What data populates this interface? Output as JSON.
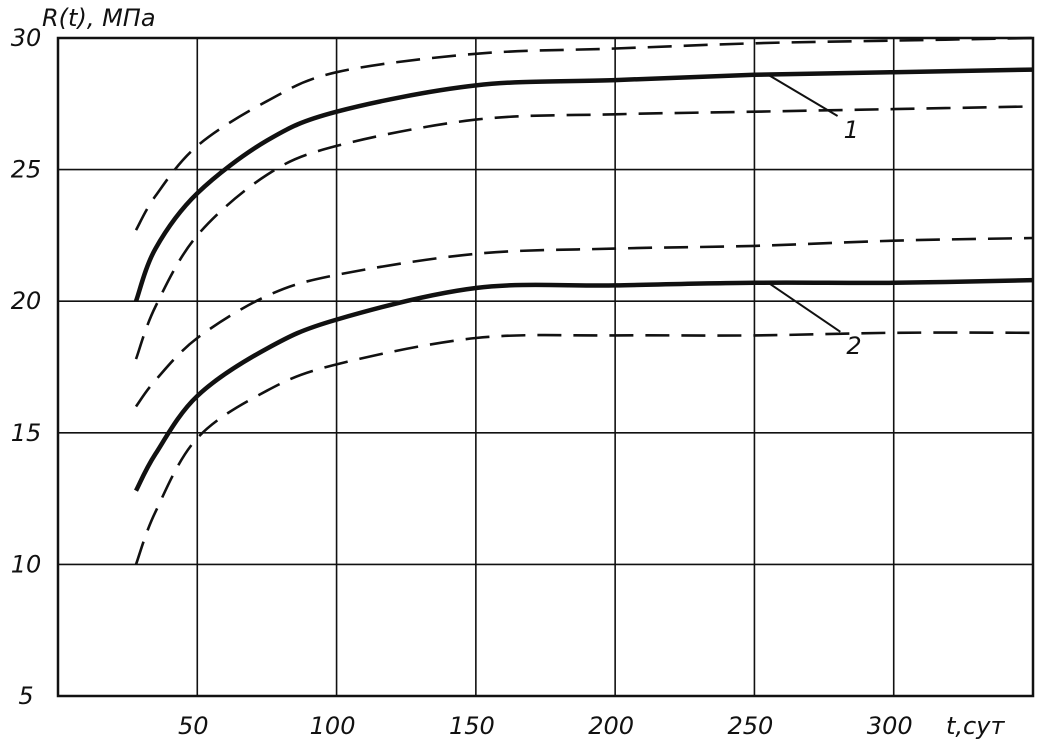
{
  "chart_data": {
    "type": "line",
    "title": "",
    "xlabel": "t,сут",
    "ylabel": "R(t), МПа",
    "xlim": [
      0,
      350
    ],
    "ylim": [
      5,
      30
    ],
    "x_ticks": [
      {
        "value": 50,
        "label": "50"
      },
      {
        "value": 100,
        "label": "100"
      },
      {
        "value": 150,
        "label": "150"
      },
      {
        "value": 200,
        "label": "200"
      },
      {
        "value": 250,
        "label": "250"
      },
      {
        "value": 300,
        "label": "300"
      }
    ],
    "y_ticks": [
      {
        "value": 5,
        "label": "5"
      },
      {
        "value": 10,
        "label": "10"
      },
      {
        "value": 15,
        "label": "15"
      },
      {
        "value": 20,
        "label": "20"
      },
      {
        "value": 25,
        "label": "25"
      },
      {
        "value": 30,
        "label": "30"
      }
    ],
    "grid": true,
    "series": [
      {
        "name": "1",
        "style": "solid",
        "x": [
          28,
          35,
          50,
          75,
          100,
          150,
          200,
          250,
          300,
          350
        ],
        "y": [
          20.0,
          22.0,
          24.1,
          26.1,
          27.2,
          28.2,
          28.4,
          28.6,
          28.7,
          28.8
        ]
      },
      {
        "name": "",
        "style": "dashed",
        "x": [
          28,
          35,
          50,
          75,
          100,
          150,
          200,
          250,
          300,
          350
        ],
        "y": [
          22.7,
          24.0,
          25.9,
          27.6,
          28.7,
          29.4,
          29.6,
          29.8,
          29.9,
          30.0
        ]
      },
      {
        "name": "",
        "style": "dashed",
        "x": [
          28,
          35,
          50,
          75,
          100,
          150,
          200,
          250,
          300,
          350
        ],
        "y": [
          17.8,
          19.8,
          22.5,
          24.8,
          25.9,
          26.9,
          27.1,
          27.2,
          27.3,
          27.4
        ]
      },
      {
        "name": "2",
        "style": "solid",
        "x": [
          28,
          35,
          50,
          75,
          100,
          150,
          200,
          250,
          300,
          350
        ],
        "y": [
          12.8,
          14.2,
          16.4,
          18.2,
          19.3,
          20.5,
          20.6,
          20.7,
          20.7,
          20.8
        ]
      },
      {
        "name": "",
        "style": "dashed",
        "x": [
          28,
          35,
          50,
          75,
          100,
          150,
          200,
          250,
          300,
          350
        ],
        "y": [
          16.0,
          17.0,
          18.6,
          20.2,
          21.0,
          21.8,
          22.0,
          22.1,
          22.3,
          22.4
        ]
      },
      {
        "name": "",
        "style": "dashed",
        "x": [
          28,
          35,
          50,
          75,
          100,
          150,
          200,
          250,
          300,
          350
        ],
        "y": [
          10.0,
          12.0,
          14.8,
          16.6,
          17.6,
          18.6,
          18.7,
          18.7,
          18.8,
          18.8
        ]
      }
    ],
    "annotations": [
      {
        "text": "1",
        "series": "1",
        "at": [
          255,
          28.6
        ],
        "text_at": [
          282,
          26.2
        ]
      },
      {
        "text": "2",
        "series": "2",
        "at": [
          255,
          20.7
        ],
        "text_at": [
          283,
          18.0
        ]
      }
    ]
  }
}
